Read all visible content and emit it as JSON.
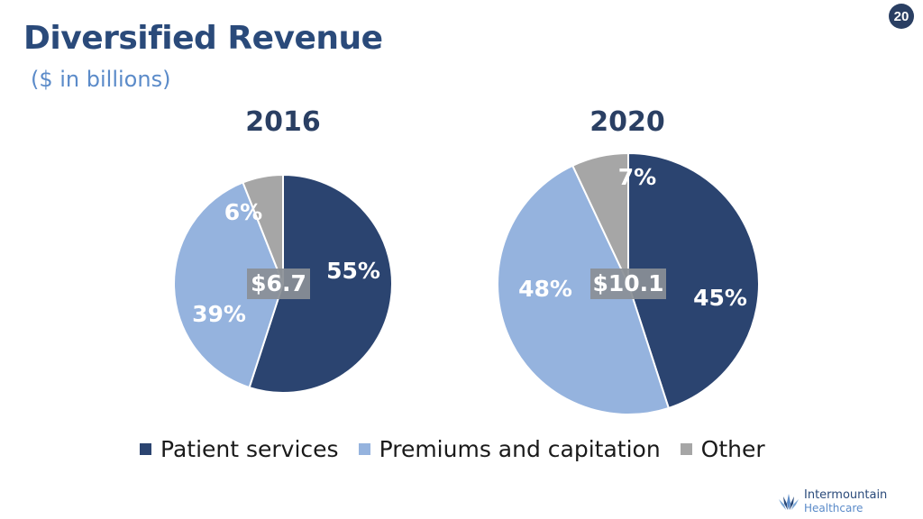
{
  "page_number": "20",
  "title": "Diversified Revenue",
  "subtitle": "($ in billions)",
  "colors": {
    "patient_services": "#2b4470",
    "premiums": "#95b3de",
    "other": "#a6a6a6",
    "title": "#2a4a7a",
    "center_label_bg": "#8a8f96"
  },
  "chart_data": [
    {
      "type": "pie",
      "title": "2016",
      "center_label": "$6.7",
      "categories": [
        "Patient services",
        "Premiums and capitation",
        "Other"
      ],
      "values": [
        55,
        39,
        6
      ],
      "labels": [
        "55%",
        "39%",
        "6%"
      ]
    },
    {
      "type": "pie",
      "title": "2020",
      "center_label": "$10.1",
      "categories": [
        "Patient services",
        "Premiums and capitation",
        "Other"
      ],
      "values": [
        45,
        48,
        7
      ],
      "labels": [
        "45%",
        "48%",
        "7%"
      ]
    }
  ],
  "legend": {
    "placement": "bottom",
    "items": [
      "Patient services",
      "Premiums and capitation",
      "Other"
    ]
  },
  "logo": {
    "icon": "intermountain-logo-icon",
    "line1": "Intermountain",
    "line2": "Healthcare"
  }
}
